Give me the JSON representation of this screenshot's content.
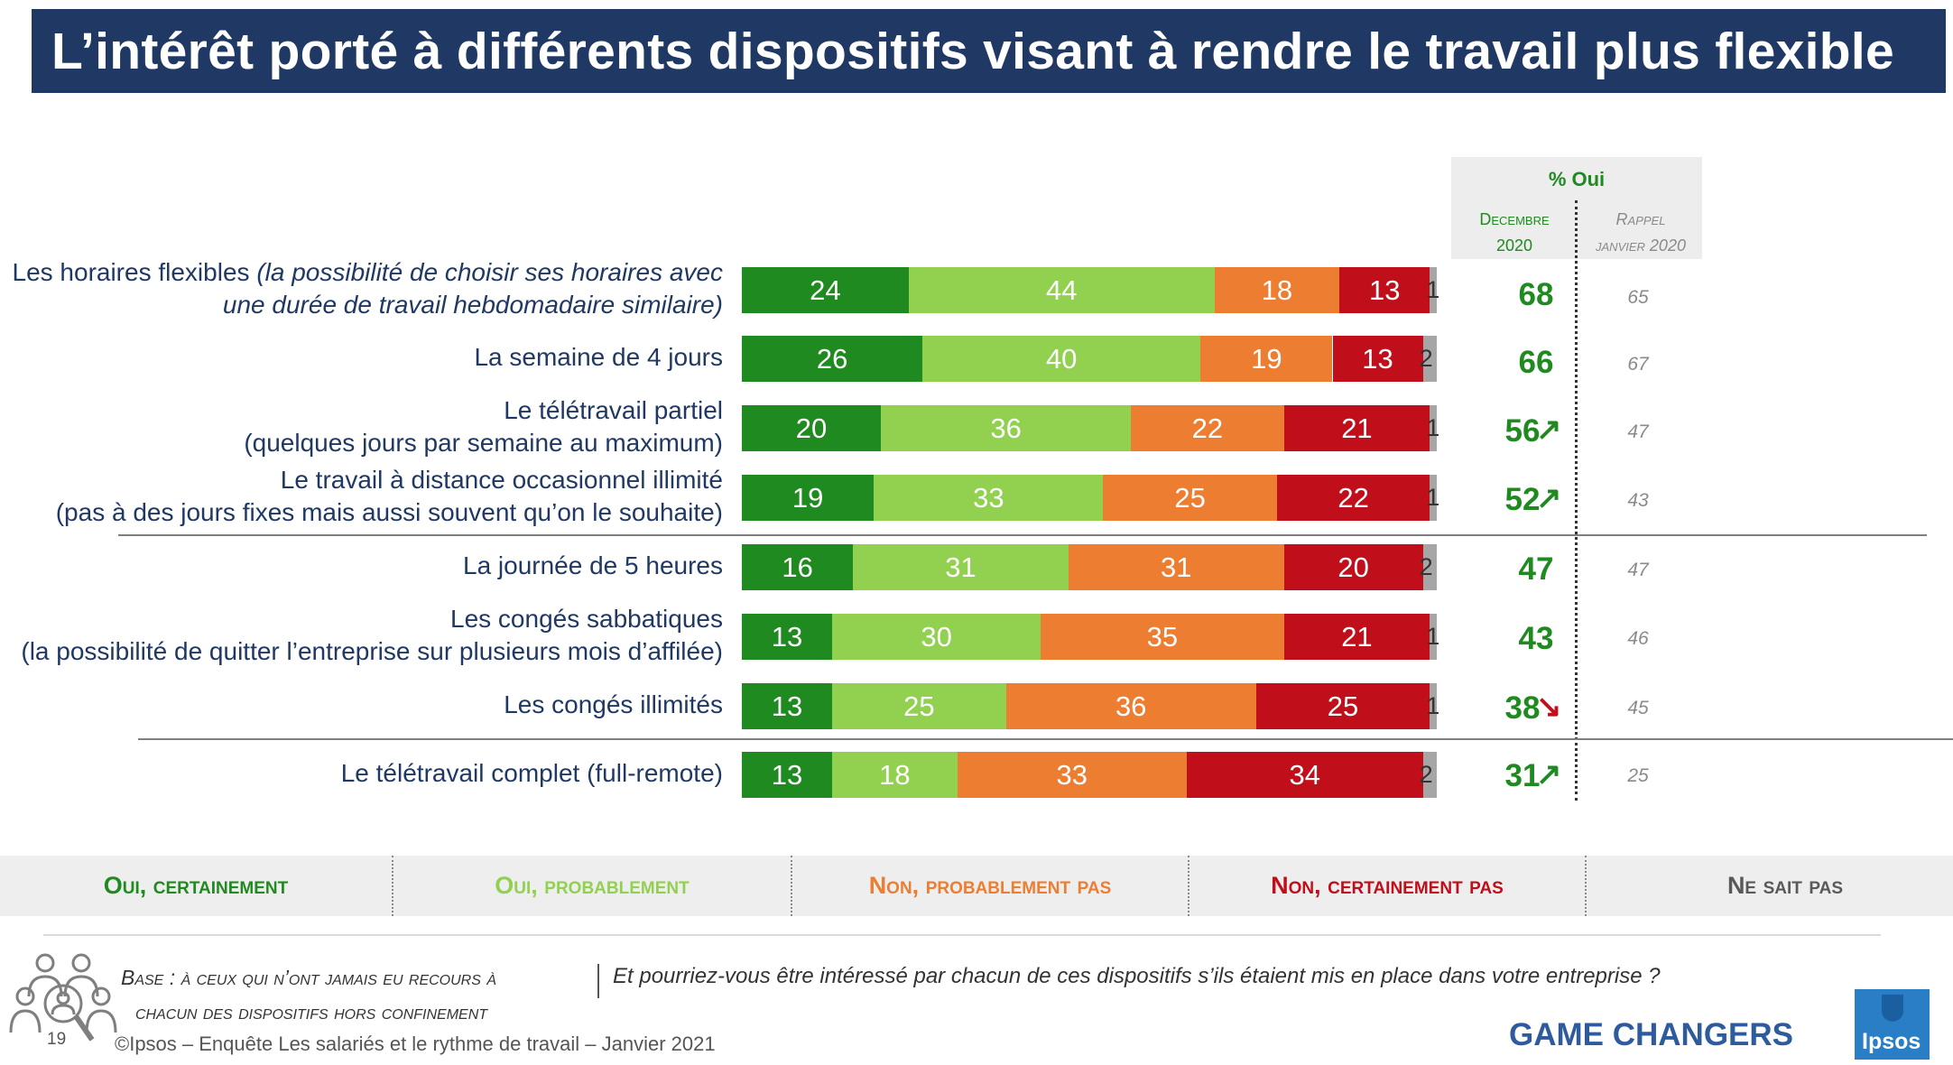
{
  "title": "L’intérêt porté à différents dispositifs visant à rendre le travail plus flexible",
  "indicator_header": {
    "main": "% Oui",
    "col1": [
      "Decembre",
      "2020"
    ],
    "col2": [
      "Rappel",
      "janvier 2020"
    ]
  },
  "colors": {
    "oui_certainement": "#1f8a1f",
    "oui_probablement": "#92d050",
    "non_probablement_pas": "#ed7d31",
    "non_certainement_pas": "#c00f1a",
    "ne_sait_pas": "#a6a6a6",
    "title_bg": "#1f3864"
  },
  "chart_data": {
    "type": "bar",
    "orientation": "horizontal",
    "stacked": true,
    "categories": [
      "Les horaires flexibles (la possibilité de choisir ses horaires avec une durée de travail hebdomadaire similaire)",
      "La semaine de 4 jours",
      "Le télétravail partiel (quelques jours par semaine au maximum)",
      "Le travail à distance occasionnel illimité (pas à des jours fixes mais aussi souvent qu’on le souhaite)",
      "La journée de 5 heures",
      "Les congés sabbatiques (la possibilité de quitter l’entreprise sur plusieurs mois d’affilée)",
      "Les congés illimités",
      "Le télétravail complet (full-remote)"
    ],
    "series": [
      {
        "name": "Oui, certainement",
        "values": [
          24,
          26,
          20,
          19,
          16,
          13,
          13,
          13
        ]
      },
      {
        "name": "Oui, probablement",
        "values": [
          44,
          40,
          36,
          33,
          31,
          30,
          25,
          18
        ]
      },
      {
        "name": "Non, probablement pas",
        "values": [
          18,
          19,
          22,
          25,
          31,
          35,
          36,
          33
        ]
      },
      {
        "name": "Non, certainement pas",
        "values": [
          13,
          13,
          21,
          22,
          20,
          21,
          25,
          34
        ]
      },
      {
        "name": "Ne sait pas",
        "values": [
          1,
          2,
          1,
          1,
          2,
          1,
          1,
          2
        ]
      }
    ],
    "pct_oui_dec_2020": [
      68,
      66,
      56,
      52,
      47,
      43,
      38,
      31
    ],
    "trend": [
      "",
      "",
      "up",
      "up",
      "",
      "",
      "down",
      "up"
    ],
    "rappel_janvier_2020": [
      65,
      67,
      47,
      43,
      47,
      46,
      45,
      25
    ],
    "legend_position": "bottom"
  },
  "rows": [
    {
      "line1": "Les horaires flexibles ",
      "line1_ital": "(la possibilité de choisir ses horaires avec",
      "line2": "",
      "line2_ital": "une durée de travail hebdomadaire similaire)"
    },
    {
      "line1": "La semaine de 4 jours",
      "line1_ital": "",
      "line2": "",
      "line2_ital": ""
    },
    {
      "line1": "Le télétravail partiel",
      "line1_ital": "",
      "line2": "(quelques jours par semaine au maximum)",
      "line2_ital": ""
    },
    {
      "line1": "Le travail à distance occasionnel illimité",
      "line1_ital": "",
      "line2": "(pas à des jours fixes mais aussi souvent qu’on le souhaite)",
      "line2_ital": ""
    },
    {
      "line1": "La journée de 5 heures",
      "line1_ital": "",
      "line2": "",
      "line2_ital": ""
    },
    {
      "line1": "Les congés sabbatiques",
      "line1_ital": "",
      "line2": "(la possibilité de quitter l’entreprise sur plusieurs mois d’affilée)",
      "line2_ital": ""
    },
    {
      "line1": "Les congés illimités",
      "line1_ital": "",
      "line2": "",
      "line2_ital": ""
    },
    {
      "line1": "Le télétravail complet (full-remote)",
      "line1_ital": "",
      "line2": "",
      "line2_ital": ""
    }
  ],
  "legend": [
    "Oui, certainement",
    "Oui, probablement",
    "Non, probablement pas",
    "Non, certainement pas",
    "Ne sait pas"
  ],
  "base": [
    "Base : à ceux qui n’ont jamais eu recours à",
    "chacun des dispositifs hors confinement"
  ],
  "question": "Et pourriez-vous être intéressé par chacun de ces dispositifs s’ils étaient mis en place dans votre entreprise ?",
  "page_number": "19",
  "copyright": "©Ipsos – Enquête Les salariés et le rythme de travail – Janvier 2021",
  "brand": "GAME CHANGERS",
  "logo": "Ipsos"
}
